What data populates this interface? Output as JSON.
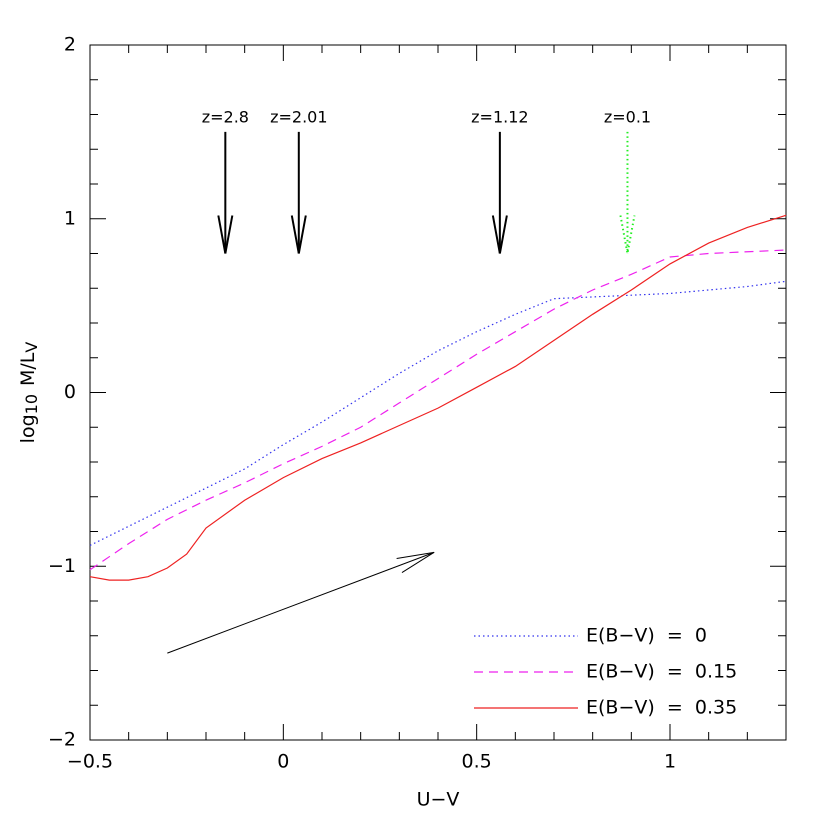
{
  "chart_data": {
    "type": "line",
    "xlabel": "U−V",
    "ylabel_parts": [
      "log",
      "10",
      "M/L",
      "V"
    ],
    "xlim": [
      -0.5,
      1.3
    ],
    "ylim": [
      -2,
      2
    ],
    "xticks": [
      {
        "value": -0.5,
        "label": "−0.5"
      },
      0,
      0.5,
      1
    ],
    "yticks": [
      {
        "value": -2,
        "label": "−2"
      },
      {
        "value": -1,
        "label": "−1"
      },
      0,
      1,
      2
    ],
    "xminorticks": [
      -0.4,
      -0.3,
      -0.2,
      -0.1,
      0.1,
      0.2,
      0.3,
      0.4,
      0.6,
      0.7,
      0.8,
      0.9,
      1.1,
      1.2
    ],
    "yminorticks": [
      -1.8,
      -1.6,
      -1.4,
      -1.2,
      -0.8,
      -0.6,
      -0.4,
      -0.2,
      0.2,
      0.4,
      0.6,
      0.8,
      1.2,
      1.4,
      1.6,
      1.8
    ],
    "series": [
      {
        "name": "E(B−V)  =  0",
        "color": "#3333ee",
        "style": "dotted",
        "x": [
          -0.5,
          -0.4,
          -0.3,
          -0.2,
          -0.1,
          0,
          0.1,
          0.2,
          0.3,
          0.4,
          0.5,
          0.6,
          0.7,
          0.8,
          0.9,
          1.0,
          1.1,
          1.2,
          1.3
        ],
        "values": [
          -0.88,
          -0.77,
          -0.66,
          -0.55,
          -0.44,
          -0.3,
          -0.17,
          -0.03,
          0.11,
          0.24,
          0.35,
          0.45,
          0.54,
          0.55,
          0.56,
          0.57,
          0.59,
          0.61,
          0.64
        ]
      },
      {
        "name": "E(B−V)  =  0.15",
        "color": "#ee22ee",
        "style": "dashed",
        "x": [
          -0.5,
          -0.4,
          -0.3,
          -0.2,
          -0.1,
          0,
          0.1,
          0.2,
          0.3,
          0.4,
          0.5,
          0.6,
          0.7,
          0.8,
          0.9,
          1.0,
          1.1,
          1.2,
          1.3
        ],
        "values": [
          -1.02,
          -0.87,
          -0.73,
          -0.62,
          -0.52,
          -0.41,
          -0.31,
          -0.2,
          -0.06,
          0.08,
          0.22,
          0.35,
          0.48,
          0.59,
          0.68,
          0.78,
          0.8,
          0.81,
          0.82
        ]
      },
      {
        "name": "E(B−V)  =  0.35",
        "color": "#ee2222",
        "style": "solid",
        "x": [
          -0.5,
          -0.45,
          -0.4,
          -0.35,
          -0.3,
          -0.25,
          -0.2,
          -0.1,
          0,
          0.1,
          0.2,
          0.3,
          0.4,
          0.5,
          0.6,
          0.7,
          0.8,
          0.9,
          1.0,
          1.1,
          1.2,
          1.3
        ],
        "values": [
          -1.06,
          -1.08,
          -1.08,
          -1.06,
          -1.01,
          -0.93,
          -0.78,
          -0.62,
          -0.49,
          -0.38,
          -0.29,
          -0.19,
          -0.09,
          0.03,
          0.15,
          0.3,
          0.45,
          0.59,
          0.74,
          0.86,
          0.95,
          1.02
        ]
      }
    ],
    "annotations": [
      {
        "text": "z=2.8",
        "x": -0.15,
        "y_top": 1.5,
        "y_bottom": 0.8,
        "color": "#000000",
        "style": "solid"
      },
      {
        "text": "z=2.01",
        "x": 0.04,
        "y_top": 1.5,
        "y_bottom": 0.8,
        "color": "#000000",
        "style": "solid"
      },
      {
        "text": "z=1.12",
        "x": 0.56,
        "y_top": 1.5,
        "y_bottom": 0.8,
        "color": "#000000",
        "style": "solid"
      },
      {
        "text": "z=0.1",
        "x": 0.89,
        "y_top": 1.5,
        "y_bottom": 0.8,
        "color": "#22ee22",
        "style": "dotted"
      }
    ],
    "vector": {
      "x": [
        -0.3,
        0.39
      ],
      "y": [
        -1.5,
        -0.92
      ]
    },
    "legend": "lower right"
  }
}
